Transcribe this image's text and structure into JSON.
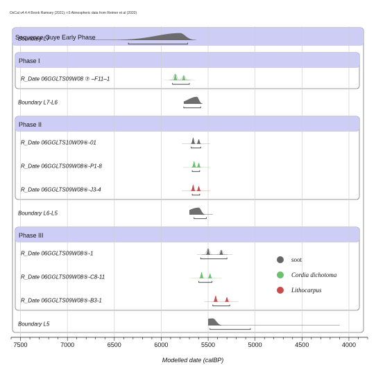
{
  "credit": "OxCal v4.4.4 Bronk Ramsey (2021); r:5 Atmospheric data from Reimer et al (2020)",
  "colors": {
    "soot": "#666666",
    "cordia": "#6cbf6c",
    "lithocarpus": "#c94a4a",
    "boundary": "#666666",
    "band": "#cdcdf5"
  },
  "chart_data": {
    "type": "area",
    "xlabel": "Modelled date (calBP)",
    "xlim": [
      7600,
      3800
    ],
    "xticks": [
      7500,
      7000,
      6500,
      6000,
      5500,
      5000,
      4500,
      4000
    ],
    "grid": true,
    "sequence_title": "Sequence Guye Early Phase",
    "rows": [
      {
        "kind": "boundary",
        "label": "Boundary L7",
        "peak": 5800,
        "width": 160,
        "tail_start": 6750,
        "tail_end": 5630,
        "range": [
          6350,
          5720
        ],
        "color": "soot"
      },
      {
        "kind": "phase",
        "label": "Phase I"
      },
      {
        "kind": "date",
        "label": "R_Date 06GGLTS09W08 ⑦ –F11–1",
        "peaks": [
          5850,
          5760
        ],
        "range": [
          5880,
          5700
        ],
        "color": "cordia",
        "prior": true
      },
      {
        "kind": "boundary",
        "label": "Boundary L7-L6",
        "peak": 5620,
        "width": 60,
        "tail_start": 5760,
        "tail_end": 5560,
        "range": [
          5760,
          5580
        ],
        "color": "soot"
      },
      {
        "kind": "phase",
        "label": "Phase II"
      },
      {
        "kind": "date",
        "label": "R_Date 06GGLTS10W09⑥-01",
        "peaks": [
          5660,
          5600
        ],
        "range": [
          5680,
          5580
        ],
        "color": "soot"
      },
      {
        "kind": "date",
        "label": "R_Date 06GGLTS09W08⑥-P1-8",
        "peaks": [
          5650,
          5600
        ],
        "range": [
          5670,
          5590
        ],
        "color": "cordia"
      },
      {
        "kind": "date",
        "label": "R_Date 06GGLTS09W08⑥-J3-4",
        "peaks": [
          5660,
          5600
        ],
        "range": [
          5670,
          5590
        ],
        "color": "lithocarpus"
      },
      {
        "kind": "boundary",
        "label": "Boundary L6-L5",
        "peak": 5600,
        "width": 70,
        "tail_start": 5700,
        "tail_end": 5450,
        "range": [
          5650,
          5520
        ],
        "color": "soot"
      },
      {
        "kind": "phase",
        "label": "Phase III"
      },
      {
        "kind": "date",
        "label": "R_Date 06GGLTS09W08⑤-1",
        "peaks": [
          5500,
          5360
        ],
        "range": [
          5580,
          5300
        ],
        "color": "soot",
        "prior": true
      },
      {
        "kind": "date",
        "label": "R_Date 06GGLTS09W08⑤-C8-11",
        "peaks": [
          5570,
          5480
        ],
        "range": [
          5600,
          5460
        ],
        "color": "cordia"
      },
      {
        "kind": "date",
        "label": "R_Date 06GGLTS09W08⑤-B3-1",
        "peaks": [
          5420,
          5300
        ],
        "range": [
          5450,
          5270
        ],
        "color": "lithocarpus"
      },
      {
        "kind": "boundary",
        "label": "Boundary L5",
        "peak": 5450,
        "width": 100,
        "tail_start": 5500,
        "tail_end": 4100,
        "range": [
          5480,
          5050
        ],
        "color": "soot"
      }
    ],
    "legend": [
      {
        "label": "soot",
        "color": "soot"
      },
      {
        "label": "Cordia dichotoma",
        "color": "cordia"
      },
      {
        "label": "Lithocarpus",
        "color": "lithocarpus"
      }
    ]
  }
}
